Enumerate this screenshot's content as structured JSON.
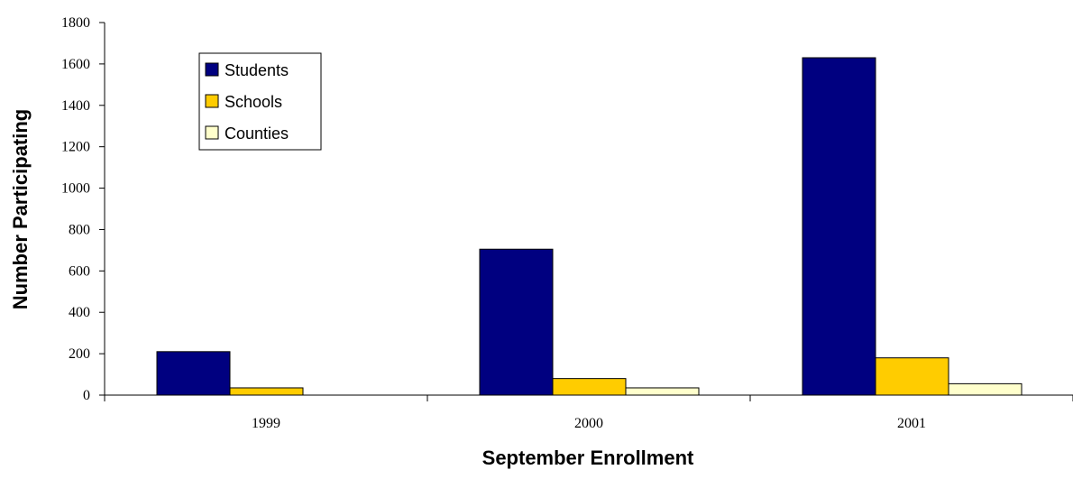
{
  "chart_data": {
    "type": "bar",
    "title": "",
    "xlabel": "September Enrollment",
    "ylabel": "Number Participating",
    "categories": [
      "1999",
      "2000",
      "2001"
    ],
    "series": [
      {
        "name": "Students",
        "values": [
          210,
          705,
          1630
        ],
        "color": "#000080"
      },
      {
        "name": "Schools",
        "values": [
          35,
          80,
          180
        ],
        "color": "#FFCC00"
      },
      {
        "name": "Counties",
        "values": [
          0,
          35,
          55
        ],
        "color": "#FFFFCC"
      }
    ],
    "ylim": [
      0,
      1800
    ],
    "yticks": [
      "0",
      "200",
      "400",
      "600",
      "800",
      "1000",
      "1200",
      "1400",
      "1600",
      "1800"
    ],
    "grid": false,
    "legend_position": "top-left"
  }
}
